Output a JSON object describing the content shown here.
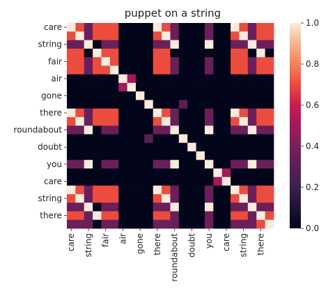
{
  "chart_data": {
    "type": "heatmap",
    "title": "puppet on a string",
    "row_labels": [
      "care",
      "",
      "string",
      "",
      "fair",
      "",
      "air",
      "",
      "gone",
      "",
      "there",
      "",
      "roundabout",
      "",
      "doubt",
      "",
      "you",
      "",
      "care",
      "",
      "string",
      "",
      "there",
      ""
    ],
    "col_labels": [
      "care",
      "",
      "string",
      "",
      "fair",
      "",
      "air",
      "",
      "gone",
      "",
      "there",
      "",
      "roundabout",
      "",
      "doubt",
      "",
      "you",
      "",
      "care",
      "",
      "string",
      "",
      "there",
      ""
    ],
    "shown_labels": [
      "care",
      "string",
      "fair",
      "air",
      "gone",
      "there",
      "roundabout",
      "doubt",
      "you",
      "care",
      "string",
      "there"
    ],
    "colorbar": {
      "min": 0.0,
      "max": 1.0,
      "ticks": [
        "0.0",
        "0.2",
        "0.4",
        "0.6",
        "0.8",
        "1.0"
      ]
    },
    "colormap": "rocket",
    "matrix": [
      [
        1,
        0.7,
        0.35,
        0.7,
        0.7,
        0.7,
        0,
        0,
        0,
        0,
        1,
        0.7,
        0.35,
        0,
        0,
        0,
        0.35,
        0,
        0,
        1,
        0.7,
        0.35,
        0.7,
        0.7
      ],
      [
        0.7,
        1,
        0.35,
        0.7,
        0.7,
        0.7,
        0,
        0,
        0,
        0,
        0.7,
        1,
        0.35,
        0,
        0,
        0,
        0.35,
        0,
        0,
        0.7,
        1,
        0.35,
        0.7,
        0.7
      ],
      [
        0.35,
        0.35,
        1,
        0,
        0.35,
        0.35,
        0,
        0,
        0,
        0,
        0.35,
        0.35,
        1,
        0,
        0,
        0,
        1,
        0,
        0,
        0.35,
        0.35,
        1,
        0.35,
        0.35
      ],
      [
        0.7,
        0.7,
        0,
        1,
        0.7,
        0.7,
        0,
        0,
        0,
        0,
        0.7,
        0.7,
        0,
        0,
        0,
        0,
        0,
        0,
        0,
        0.7,
        0.7,
        0,
        1,
        0
      ],
      [
        0.7,
        0.7,
        0.35,
        0.7,
        1,
        0.7,
        0,
        0,
        0,
        0,
        0.7,
        0.7,
        0.35,
        0,
        0,
        0,
        0.35,
        0,
        0,
        0.7,
        0.7,
        0.35,
        0.7,
        0.7
      ],
      [
        0.7,
        0.7,
        0.35,
        0.7,
        0.7,
        1,
        0,
        0,
        0,
        0,
        0.7,
        0.7,
        0.35,
        0,
        0,
        0,
        0.35,
        0,
        0,
        0.7,
        0.7,
        0.35,
        0.7,
        0.7
      ],
      [
        0,
        0,
        0,
        0,
        0,
        0,
        1,
        0.5,
        0,
        0,
        0,
        0,
        0,
        0,
        0,
        0,
        0,
        0,
        0,
        0,
        0,
        0,
        0,
        0
      ],
      [
        0,
        0,
        0,
        0,
        0,
        0,
        0.5,
        1,
        0,
        0,
        0,
        0,
        0,
        0,
        0,
        0,
        0,
        0,
        0,
        0,
        0,
        0,
        0,
        0
      ],
      [
        0,
        0,
        0,
        0,
        0,
        0,
        0,
        0,
        1,
        0,
        0,
        0,
        0,
        0,
        0,
        0,
        0,
        0,
        0,
        0,
        0,
        0,
        0,
        0
      ],
      [
        0,
        0,
        0,
        0,
        0,
        0,
        0,
        0,
        0,
        1,
        0,
        0,
        0,
        0.3,
        0,
        0,
        0,
        0,
        0,
        0,
        0,
        0,
        0,
        0
      ],
      [
        1,
        0.7,
        0.35,
        0.7,
        0.7,
        0.7,
        0,
        0,
        0,
        0,
        1,
        0.7,
        0.35,
        0,
        0,
        0,
        0.35,
        0,
        0,
        1,
        0.7,
        0.35,
        0.7,
        0.7
      ],
      [
        0.7,
        1,
        0.35,
        0.7,
        0.7,
        0.7,
        0,
        0,
        0,
        0,
        0.7,
        1,
        0.35,
        0,
        0,
        0,
        0.35,
        0,
        0,
        0.7,
        1,
        0.35,
        0.7,
        0.7
      ],
      [
        0.35,
        0.35,
        1,
        0,
        0.35,
        0.35,
        0,
        0,
        0,
        0,
        0.35,
        0.35,
        1,
        0,
        0,
        0,
        1,
        0,
        0,
        0.35,
        0.35,
        1,
        0.35,
        0.35
      ],
      [
        0,
        0,
        0,
        0,
        0,
        0,
        0,
        0,
        0,
        0.3,
        0,
        0,
        0,
        1,
        0,
        0,
        0,
        0,
        0,
        0,
        0,
        0,
        0,
        0
      ],
      [
        0,
        0,
        0,
        0,
        0,
        0,
        0,
        0,
        0,
        0,
        0,
        0,
        0,
        0,
        1,
        0,
        0,
        0,
        0,
        0,
        0,
        0,
        0,
        0
      ],
      [
        0,
        0,
        0,
        0,
        0,
        0,
        0,
        0,
        0,
        0,
        0,
        0,
        0,
        0,
        0,
        1,
        0,
        0,
        0,
        0,
        0,
        0,
        0,
        0
      ],
      [
        0.35,
        0.35,
        1,
        0,
        0.35,
        0.35,
        0,
        0,
        0,
        0,
        0.35,
        0.35,
        1,
        0,
        0,
        0,
        1,
        0,
        0,
        0.35,
        0.35,
        1,
        0.35,
        0.35
      ],
      [
        0,
        0,
        0,
        0,
        0,
        0,
        0,
        0,
        0,
        0,
        0,
        0,
        0,
        0,
        0,
        0,
        0,
        1,
        0.5,
        0,
        0,
        0,
        0,
        0
      ],
      [
        0,
        0,
        0,
        0,
        0,
        0,
        0,
        0,
        0,
        0,
        0,
        0,
        0,
        0,
        0,
        0,
        0,
        0.5,
        1,
        0,
        0,
        0,
        0,
        0
      ],
      [
        1,
        0.7,
        0.35,
        0.7,
        0.7,
        0.7,
        0,
        0,
        0,
        0,
        1,
        0.7,
        0.35,
        0,
        0,
        0,
        0.35,
        0,
        0,
        1,
        0.7,
        0.35,
        0.7,
        0.7
      ],
      [
        0.7,
        1,
        0.35,
        0.7,
        0.7,
        0.7,
        0,
        0,
        0,
        0,
        0.7,
        1,
        0.35,
        0,
        0,
        0,
        0.35,
        0,
        0,
        0.7,
        1,
        0.35,
        0.7,
        0.7
      ],
      [
        0.35,
        0.35,
        1,
        0,
        0.35,
        0.35,
        0,
        0,
        0,
        0,
        0.35,
        0.35,
        1,
        0,
        0,
        0,
        1,
        0,
        0,
        0.35,
        0.35,
        1,
        0.35,
        0.35
      ],
      [
        0.7,
        0.7,
        0.35,
        1,
        0.7,
        0.7,
        0,
        0,
        0,
        0,
        0.7,
        0.7,
        0.35,
        0,
        0,
        0,
        0.35,
        0,
        0,
        0.7,
        0.7,
        0.35,
        1,
        0.7
      ],
      [
        0.35,
        0.35,
        0.35,
        0,
        0.35,
        0.35,
        0,
        0,
        0,
        0,
        0.35,
        0.35,
        0.35,
        0,
        0,
        0,
        0.35,
        0,
        0,
        0.35,
        0.35,
        0.35,
        0.7,
        1
      ]
    ]
  }
}
